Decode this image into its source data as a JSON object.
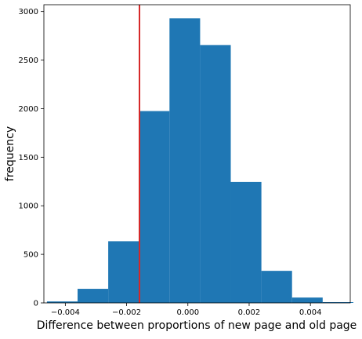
{
  "chart_data": {
    "type": "bar",
    "chart_kind": "histogram",
    "xlabel": "Difference between proportions of new page and old page",
    "ylabel": "frequency",
    "xlim": [
      -0.0047,
      0.0053
    ],
    "ylim": [
      0,
      3070
    ],
    "x_ticks": [
      {
        "value": -0.004,
        "label": "−0.004"
      },
      {
        "value": -0.002,
        "label": "−0.002"
      },
      {
        "value": 0.0,
        "label": "0.000"
      },
      {
        "value": 0.002,
        "label": "0.002"
      },
      {
        "value": 0.004,
        "label": "0.004"
      }
    ],
    "y_ticks": [
      {
        "value": 0,
        "label": "0"
      },
      {
        "value": 500,
        "label": "500"
      },
      {
        "value": 1000,
        "label": "1000"
      },
      {
        "value": 1500,
        "label": "1500"
      },
      {
        "value": 2000,
        "label": "2000"
      },
      {
        "value": 2500,
        "label": "2500"
      },
      {
        "value": 3000,
        "label": "3000"
      }
    ],
    "bins": [
      {
        "x0": -0.0046,
        "x1": -0.0036,
        "count": 15
      },
      {
        "x0": -0.0036,
        "x1": -0.0026,
        "count": 145
      },
      {
        "x0": -0.0026,
        "x1": -0.0016,
        "count": 635
      },
      {
        "x0": -0.0016,
        "x1": -0.0006,
        "count": 1975
      },
      {
        "x0": -0.0006,
        "x1": 0.0004,
        "count": 2930
      },
      {
        "x0": 0.0004,
        "x1": 0.0014,
        "count": 2655
      },
      {
        "x0": 0.0014,
        "x1": 0.0024,
        "count": 1245
      },
      {
        "x0": 0.0024,
        "x1": 0.0034,
        "count": 330
      },
      {
        "x0": 0.0034,
        "x1": 0.0044,
        "count": 55
      },
      {
        "x0": 0.0044,
        "x1": 0.0054,
        "count": 8
      }
    ],
    "reference_line": {
      "x": -0.00158,
      "color": "#d62728"
    },
    "bar_color": "#1f77b4",
    "grid": false,
    "legend": "none"
  }
}
